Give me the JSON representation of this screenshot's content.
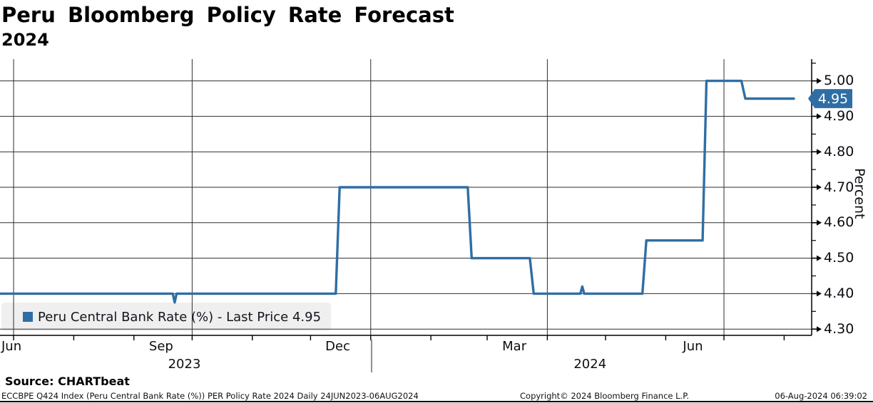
{
  "title": "Peru Bloomberg Policy Rate Forecast",
  "subtitle": "2024",
  "legend": {
    "label": "Peru Central Bank Rate (%) - Last Price 4.95"
  },
  "y_axis": {
    "title": "Percent",
    "tick_labels": [
      "4.30",
      "4.40",
      "4.50",
      "4.60",
      "4.70",
      "4.80",
      "4.90",
      "5.00"
    ],
    "minor_tick_step": 0.05,
    "badge": "4.95"
  },
  "x_axis": {
    "month_labels": [
      {
        "text": "Jun",
        "date": "2023-06-24",
        "align": "left"
      },
      {
        "text": "Sep",
        "date": "2023-09-15"
      },
      {
        "text": "Dec",
        "date": "2023-12-15"
      },
      {
        "text": "Mar",
        "date": "2024-03-15"
      },
      {
        "text": "Jun",
        "date": "2024-06-15"
      }
    ],
    "year_labels": [
      {
        "text": "2023",
        "date": "2023-09-27"
      },
      {
        "text": "2024",
        "date": "2024-04-23"
      }
    ],
    "separator_date": "2024-01-01"
  },
  "footer": {
    "source": "Source: CHARTbeat",
    "description": "ECCBPE Q424 Index (Peru Central Bank Rate (%)) PER Policy Rate 2024  Daily 24JUN2023-06AUG2024",
    "copyright": "Copyright© 2024 Bloomberg Finance L.P.",
    "timestamp": "06-Aug-2024 06:39:02"
  },
  "colors": {
    "line": "#2f6ea5",
    "badge_bg": "#2f6ea5",
    "badge_text": "#ffffff",
    "legend_bg": "#efefef",
    "grid": "#2e2e2e",
    "axis": "#000000",
    "separator": "#909090"
  },
  "chart_data": {
    "type": "line",
    "title": "Peru Bloomberg Policy Rate Forecast 2024",
    "ylabel": "Percent",
    "ylim": [
      4.28,
      5.06
    ],
    "x_range": [
      "2023-06-24",
      "2024-08-06"
    ],
    "y_ticks": [
      4.3,
      4.4,
      4.5,
      4.6,
      4.7,
      4.8,
      4.9,
      5.0
    ],
    "grid": "on",
    "legend_position": "bottom-left",
    "series": [
      {
        "name": "Peru Central Bank Rate (%)",
        "last_price": 4.95,
        "color": "#2f6ea5",
        "points": [
          [
            "2023-06-24",
            4.4
          ],
          [
            "2023-09-21",
            4.4
          ],
          [
            "2023-09-22",
            4.375
          ],
          [
            "2023-09-23",
            4.4
          ],
          [
            "2023-12-14",
            4.4
          ],
          [
            "2023-12-16",
            4.7
          ],
          [
            "2024-02-20",
            4.7
          ],
          [
            "2024-02-22",
            4.5
          ],
          [
            "2024-03-23",
            4.5
          ],
          [
            "2024-03-25",
            4.4
          ],
          [
            "2024-04-18",
            4.4
          ],
          [
            "2024-04-19",
            4.42
          ],
          [
            "2024-04-20",
            4.4
          ],
          [
            "2024-05-20",
            4.4
          ],
          [
            "2024-05-22",
            4.55
          ],
          [
            "2024-06-20",
            4.55
          ],
          [
            "2024-06-22",
            5.0
          ],
          [
            "2024-07-10",
            5.0
          ],
          [
            "2024-07-12",
            4.95
          ],
          [
            "2024-08-06",
            4.95
          ]
        ]
      }
    ]
  }
}
